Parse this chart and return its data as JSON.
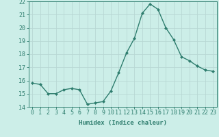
{
  "x": [
    0,
    1,
    2,
    3,
    4,
    5,
    6,
    7,
    8,
    9,
    10,
    11,
    12,
    13,
    14,
    15,
    16,
    17,
    18,
    19,
    20,
    21,
    22,
    23
  ],
  "y": [
    15.8,
    15.7,
    15.0,
    15.0,
    15.3,
    15.4,
    15.3,
    14.2,
    14.3,
    14.4,
    15.2,
    16.6,
    18.1,
    19.2,
    21.1,
    21.8,
    21.4,
    20.0,
    19.1,
    17.8,
    17.5,
    17.1,
    16.8,
    16.7
  ],
  "line_color": "#2e7d6e",
  "marker": "D",
  "marker_size": 2.0,
  "bg_color": "#cceee8",
  "grid_color": "#b8d8d4",
  "xlabel": "Humidex (Indice chaleur)",
  "ylim": [
    14,
    22
  ],
  "xlim_min": -0.5,
  "xlim_max": 23.5,
  "yticks": [
    14,
    15,
    16,
    17,
    18,
    19,
    20,
    21,
    22
  ],
  "xticks": [
    0,
    1,
    2,
    3,
    4,
    5,
    6,
    7,
    8,
    9,
    10,
    11,
    12,
    13,
    14,
    15,
    16,
    17,
    18,
    19,
    20,
    21,
    22,
    23
  ],
  "xlabel_fontsize": 6.5,
  "tick_fontsize": 6.0,
  "tick_color": "#2e7d6e",
  "axis_color": "#2e7d6e",
  "linewidth": 1.0
}
